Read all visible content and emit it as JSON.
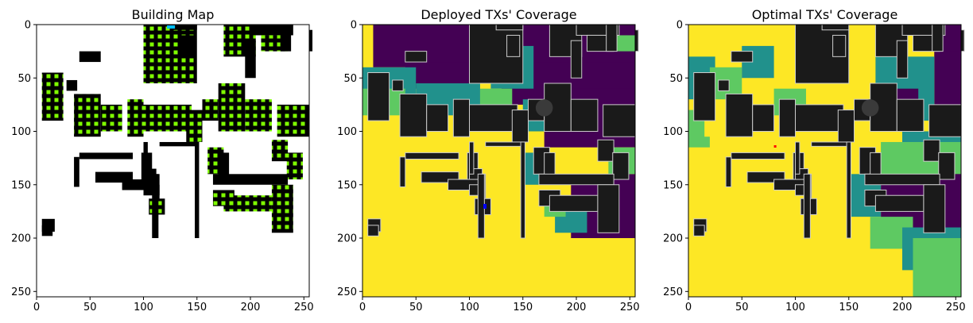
{
  "chart_data": [
    {
      "type": "heatmap",
      "title": "Building Map",
      "xlim": [
        0,
        255
      ],
      "ylim": [
        255,
        0
      ],
      "xticks": [
        0,
        50,
        100,
        150,
        200,
        250
      ],
      "yticks": [
        0,
        50,
        100,
        150,
        200,
        250
      ],
      "grid": false,
      "content": "building footprints with candidate transmitter sites",
      "colors": {
        "background": "#ffffff",
        "building": "#000000",
        "candidate_site": "#7fff00",
        "selected_site": "#00bfff"
      }
    },
    {
      "type": "heatmap",
      "title": "Deployed TXs' Coverage",
      "xlim": [
        0,
        255
      ],
      "ylim": [
        255,
        0
      ],
      "xticks": [
        0,
        50,
        100,
        150,
        200,
        250
      ],
      "yticks": [
        0,
        50,
        100,
        150,
        200,
        250
      ],
      "grid": false,
      "colormap": [
        "#440154",
        "#21918c",
        "#5ec962",
        "#fde725"
      ],
      "colors": {
        "building": "#1a1a1a",
        "tx_marker": "#0000ff"
      }
    },
    {
      "type": "heatmap",
      "title": "Optimal TXs' Coverage",
      "xlim": [
        0,
        255
      ],
      "ylim": [
        255,
        0
      ],
      "xticks": [
        0,
        50,
        100,
        150,
        200,
        250
      ],
      "yticks": [
        0,
        50,
        100,
        150,
        200,
        250
      ],
      "grid": false,
      "colormap": [
        "#440154",
        "#21918c",
        "#5ec962",
        "#fde725"
      ],
      "colors": {
        "building": "#1a1a1a",
        "tx_marker": "#ff0000"
      }
    }
  ]
}
